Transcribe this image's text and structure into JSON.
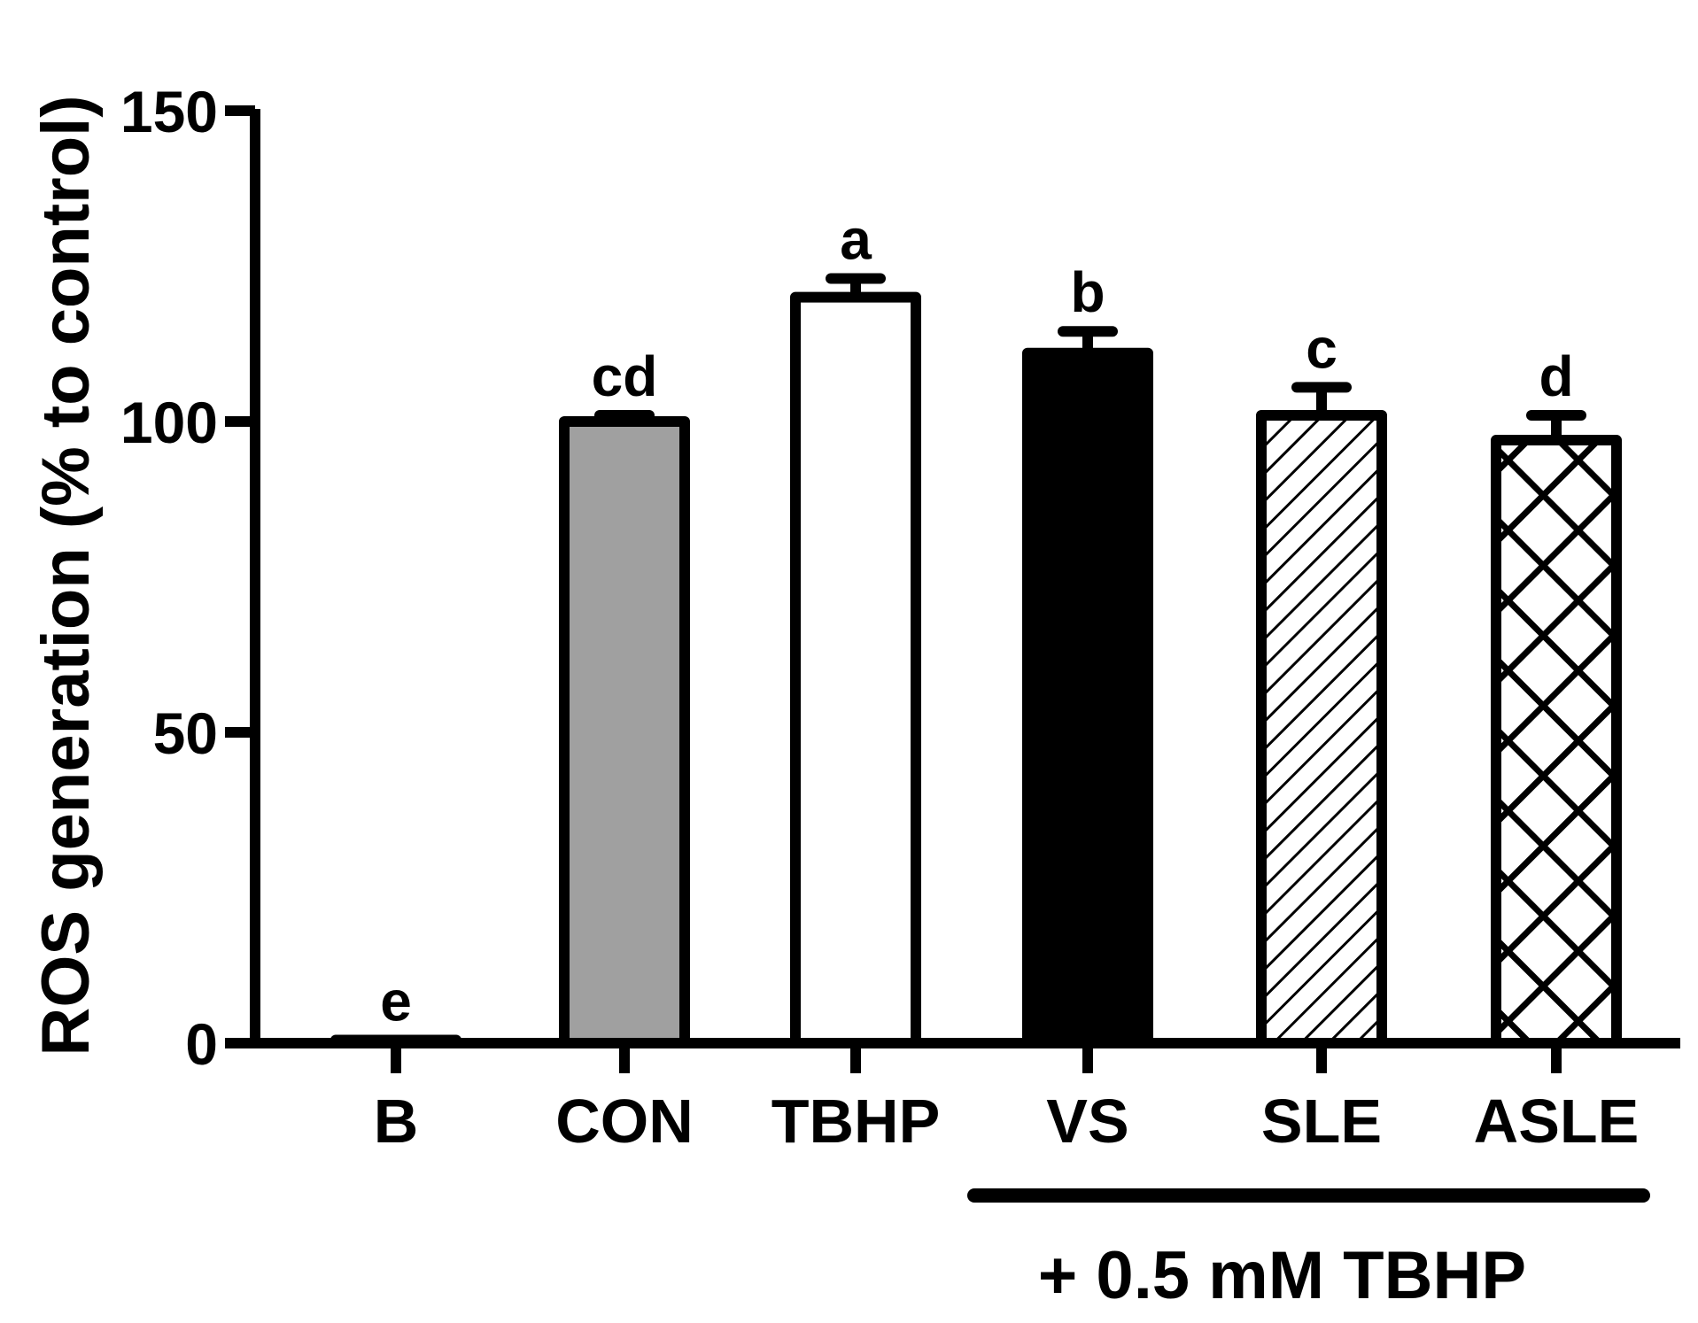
{
  "chart_data": {
    "type": "bar",
    "title": "",
    "xlabel": "",
    "ylabel": "ROS generation (% to control)",
    "ylim": [
      0,
      150
    ],
    "yticks": [
      0,
      50,
      100,
      150
    ],
    "grid": false,
    "categories": [
      "B",
      "CON",
      "TBHP",
      "VS",
      "SLE",
      "ASLE"
    ],
    "values": [
      0.5,
      100,
      120,
      111,
      101,
      97
    ],
    "errors": [
      0,
      1,
      3,
      3.5,
      4.5,
      4
    ],
    "significance_labels": [
      "e",
      "cd",
      "a",
      "b",
      "c",
      "d"
    ],
    "bar_fills": [
      "white",
      "gray",
      "white",
      "black",
      "hatch",
      "crosshatch"
    ],
    "colors": {
      "gray": "#a0a0a0",
      "black": "#000000",
      "white": "#ffffff"
    },
    "group_annotation": {
      "label": "+ 0.5 mM TBHP",
      "categories": [
        "VS",
        "SLE",
        "ASLE"
      ]
    }
  }
}
